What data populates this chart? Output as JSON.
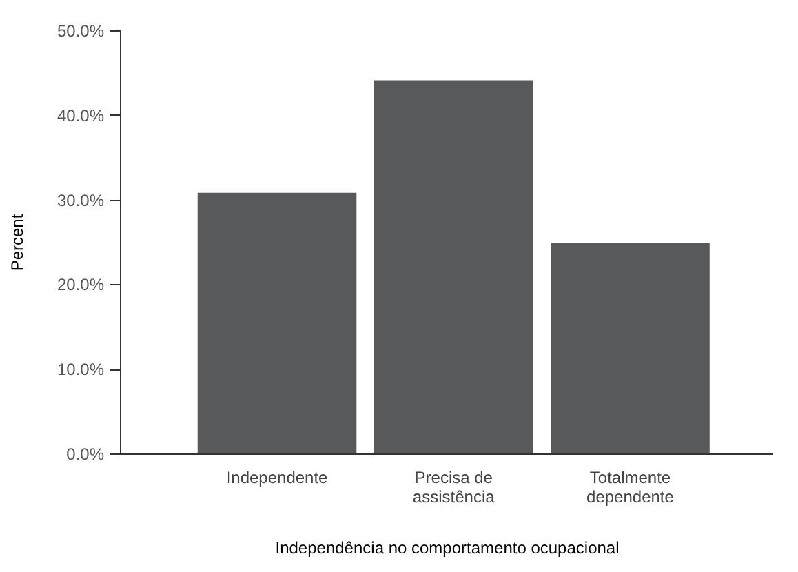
{
  "chart_data": {
    "type": "bar",
    "xlabel": "Independência no comportamento ocupacional",
    "ylabel": "Percent",
    "categories": [
      "Independente",
      "Precisa de assistência",
      "Totalmente dependente"
    ],
    "values": [
      30.8,
      44.1,
      24.9
    ],
    "color": "#58595b",
    "ylim": [
      0,
      50
    ],
    "yticks": [
      {
        "value": 0,
        "label": "0.0%"
      },
      {
        "value": 10,
        "label": "10.0%"
      },
      {
        "value": 20,
        "label": "20.0%"
      },
      {
        "value": 30,
        "label": "30.0%"
      },
      {
        "value": 40,
        "label": "40.0%"
      },
      {
        "value": 50,
        "label": "50.0%"
      }
    ],
    "grid": false
  }
}
